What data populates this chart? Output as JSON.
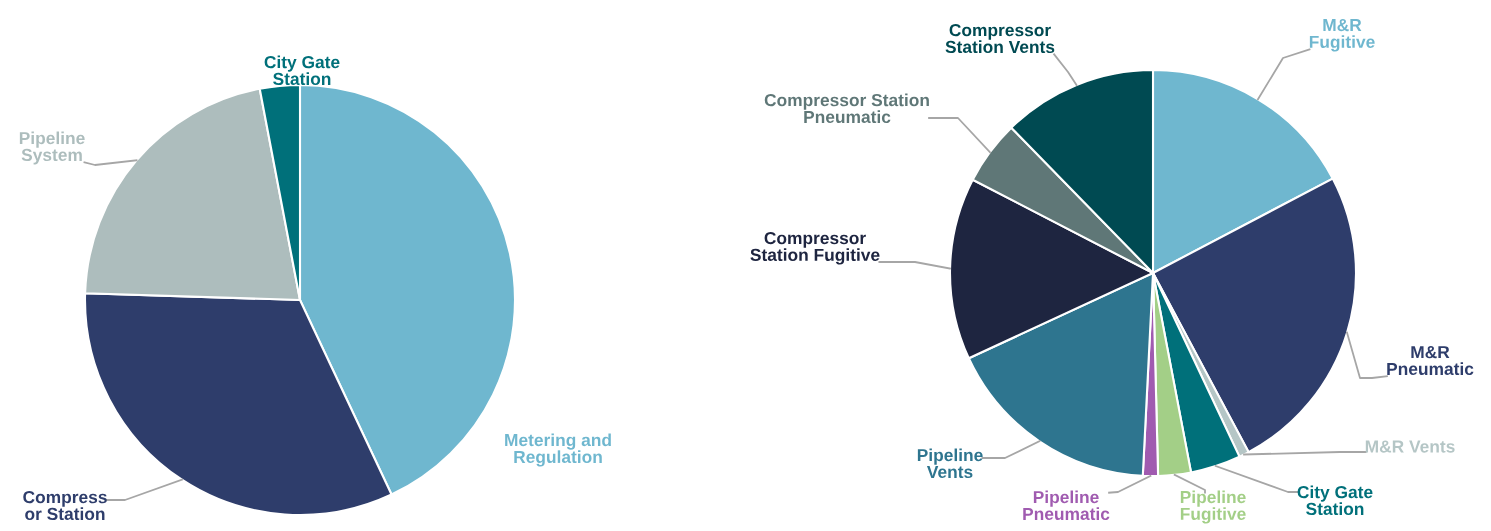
{
  "chart_data": [
    {
      "type": "pie",
      "categories": [
        "Metering and\nRegulation",
        "Compress\nor Station",
        "Pipeline\nSystem",
        "City Gate\nStation"
      ],
      "values": [
        43,
        32.5,
        21.5,
        3
      ],
      "colors": [
        "#6fb7cf",
        "#2e3d6b",
        "#adbdbd",
        "#00707a"
      ]
    },
    {
      "type": "pie",
      "categories": [
        "M&R\nFugitive",
        "M&R\nPneumatic",
        "M&R Vents",
        "City Gate\nStation",
        "Pipeline\nFugitive",
        "Pipeline\nPneumatic",
        "Pipeline\nVents",
        "Compressor\nStation Fugitive",
        "Compressor Station\nPneumatic",
        "Compressor\nStation Vents"
      ],
      "values": [
        17.3,
        24.9,
        0.8,
        4.0,
        2.6,
        1.2,
        17.3,
        14.5,
        5.1,
        12.3
      ],
      "colors": [
        "#6fb7cf",
        "#2e3d6b",
        "#b5c6c6",
        "#00707a",
        "#a3cf87",
        "#a05bb0",
        "#2e758f",
        "#1e2540",
        "#5f7777",
        "#004a52"
      ]
    }
  ]
}
